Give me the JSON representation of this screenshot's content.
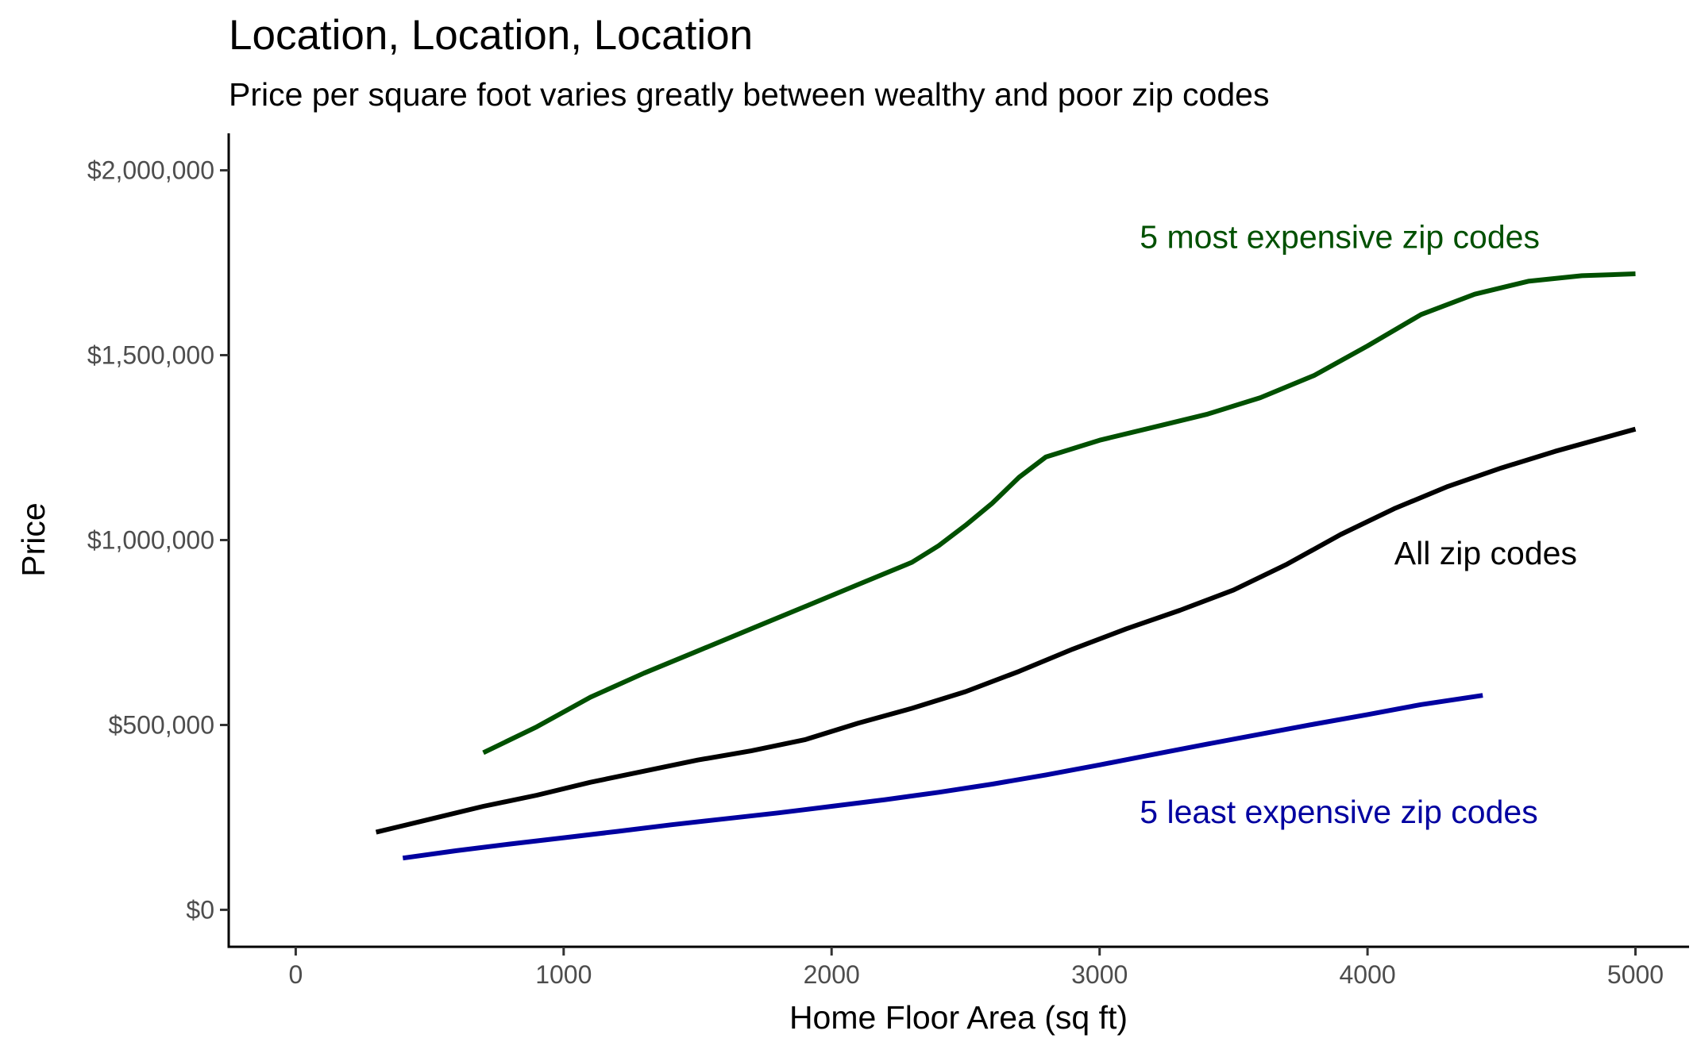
{
  "chart_data": {
    "type": "line",
    "title": "Location, Location, Location",
    "subtitle": "Price per square foot varies greatly between wealthy and poor zip codes",
    "xlabel": "Home Floor Area (sq ft)",
    "ylabel": "Price",
    "xlim": [
      -250,
      5200
    ],
    "ylim": [
      -100000,
      2100000
    ],
    "x_ticks": [
      0,
      1000,
      2000,
      3000,
      4000,
      5000
    ],
    "x_tick_labels": [
      "0",
      "1000",
      "2000",
      "3000",
      "4000",
      "5000"
    ],
    "y_ticks": [
      0,
      500000,
      1000000,
      1500000,
      2000000
    ],
    "y_tick_labels": [
      "$0",
      "$500,000",
      "$1,000,000",
      "$1,500,000",
      "$2,000,000"
    ],
    "grid": false,
    "legend": "none",
    "series": [
      {
        "label": "5 most expensive zip codes",
        "color": "#005000",
        "label_anchor": {
          "x": 3150,
          "y": 1790000
        },
        "points": [
          [
            700,
            425000
          ],
          [
            900,
            495000
          ],
          [
            1100,
            575000
          ],
          [
            1300,
            640000
          ],
          [
            1500,
            700000
          ],
          [
            1700,
            760000
          ],
          [
            1900,
            820000
          ],
          [
            2100,
            880000
          ],
          [
            2300,
            940000
          ],
          [
            2400,
            985000
          ],
          [
            2500,
            1040000
          ],
          [
            2600,
            1100000
          ],
          [
            2700,
            1170000
          ],
          [
            2800,
            1225000
          ],
          [
            3000,
            1270000
          ],
          [
            3200,
            1305000
          ],
          [
            3400,
            1340000
          ],
          [
            3600,
            1385000
          ],
          [
            3800,
            1445000
          ],
          [
            4000,
            1525000
          ],
          [
            4200,
            1610000
          ],
          [
            4400,
            1665000
          ],
          [
            4600,
            1700000
          ],
          [
            4800,
            1715000
          ],
          [
            5000,
            1720000
          ]
        ]
      },
      {
        "label": "All zip codes",
        "color": "#000000",
        "label_anchor": {
          "x": 4100,
          "y": 935000
        },
        "points": [
          [
            300,
            210000
          ],
          [
            500,
            245000
          ],
          [
            700,
            280000
          ],
          [
            900,
            310000
          ],
          [
            1100,
            345000
          ],
          [
            1300,
            375000
          ],
          [
            1500,
            405000
          ],
          [
            1700,
            430000
          ],
          [
            1900,
            460000
          ],
          [
            2100,
            505000
          ],
          [
            2300,
            545000
          ],
          [
            2500,
            590000
          ],
          [
            2700,
            645000
          ],
          [
            2900,
            705000
          ],
          [
            3100,
            760000
          ],
          [
            3300,
            810000
          ],
          [
            3500,
            865000
          ],
          [
            3700,
            935000
          ],
          [
            3900,
            1015000
          ],
          [
            4100,
            1085000
          ],
          [
            4300,
            1145000
          ],
          [
            4500,
            1195000
          ],
          [
            4700,
            1240000
          ],
          [
            4900,
            1280000
          ],
          [
            5000,
            1300000
          ]
        ]
      },
      {
        "label": "5 least expensive zip codes",
        "color": "#0000a0",
        "label_anchor": {
          "x": 3150,
          "y": 235000
        },
        "points": [
          [
            400,
            140000
          ],
          [
            600,
            160000
          ],
          [
            800,
            178000
          ],
          [
            1000,
            195000
          ],
          [
            1200,
            212000
          ],
          [
            1400,
            230000
          ],
          [
            1600,
            246000
          ],
          [
            1800,
            262000
          ],
          [
            2000,
            280000
          ],
          [
            2200,
            298000
          ],
          [
            2400,
            318000
          ],
          [
            2600,
            340000
          ],
          [
            2800,
            365000
          ],
          [
            3000,
            392000
          ],
          [
            3200,
            420000
          ],
          [
            3400,
            448000
          ],
          [
            3600,
            475000
          ],
          [
            3800,
            502000
          ],
          [
            4000,
            528000
          ],
          [
            4200,
            555000
          ],
          [
            4430,
            580000
          ]
        ]
      }
    ]
  }
}
